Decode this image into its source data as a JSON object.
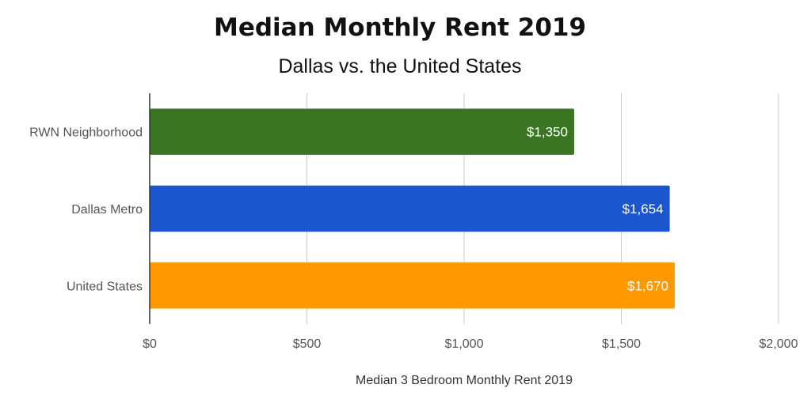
{
  "chart_data": {
    "type": "bar",
    "orientation": "horizontal",
    "title": "Median Monthly Rent 2019",
    "subtitle": "Dallas vs. the United States",
    "xlabel": "Median 3 Bedroom Monthly Rent 2019",
    "ylabel": "",
    "categories": [
      "RWN Neighborhood",
      "Dallas Metro",
      "United States"
    ],
    "values": [
      1350,
      1654,
      1670
    ],
    "data_labels": [
      "$1,350",
      "$1,654",
      "$1,670"
    ],
    "colors": [
      "#3a7524",
      "#1a56cf",
      "#ff9900"
    ],
    "xlim": [
      0,
      2000
    ],
    "xticks": [
      0,
      500,
      1000,
      1500,
      2000
    ],
    "xtick_labels": [
      "$0",
      "$500",
      "$1,000",
      "$1,500",
      "$2,000"
    ],
    "grid": true,
    "legend": "none"
  }
}
